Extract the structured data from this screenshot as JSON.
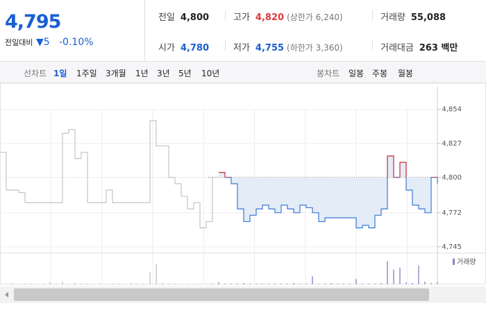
{
  "quote": {
    "price": "4,795",
    "change_label": "전일대비",
    "change": "5",
    "change_pct": "-0.10%",
    "stats": [
      [
        {
          "label": "전일",
          "value": "4,800"
        },
        {
          "label": "고가",
          "value": "4,820",
          "note": "(상한가 6,240)"
        },
        {
          "label": "거래량",
          "value": "55,088"
        }
      ],
      [
        {
          "label": "시가",
          "value": "4,780"
        },
        {
          "label": "저가",
          "value": "4,755",
          "note": "(하한가 3,360)"
        },
        {
          "label": "거래대금",
          "value": "263 백만"
        }
      ]
    ]
  },
  "toolbar": {
    "line_label": "선차트",
    "line_periods": [
      "1일",
      "1주일",
      "3개월",
      "1년",
      "3년",
      "5년",
      "10년"
    ],
    "candle_label": "봉차트",
    "candle_periods": [
      "일봉",
      "주봉",
      "월봉"
    ]
  },
  "chart_data": {
    "type": "line",
    "x": [
      0,
      1,
      2,
      3,
      4,
      5,
      6,
      7,
      8,
      9,
      10,
      11,
      12,
      13,
      14,
      15,
      16,
      17,
      18,
      19,
      20,
      21,
      22,
      23,
      24,
      25,
      26,
      27,
      28,
      29,
      30,
      31,
      32,
      33,
      34,
      35,
      36,
      37,
      38,
      39,
      40,
      41,
      42,
      43,
      44,
      45,
      46,
      47,
      48,
      49,
      50,
      51,
      52,
      53,
      54,
      55,
      56,
      57,
      58,
      59,
      60,
      61,
      62,
      63,
      64,
      65,
      66,
      67,
      68,
      69,
      70
    ],
    "xlim": [
      0,
      70
    ],
    "series": [
      {
        "color": "#c4c4c4",
        "values": [
          4820,
          4790,
          4790,
          4788,
          4780,
          4780,
          4780,
          4780,
          4780,
          4780,
          4835,
          4838,
          4815,
          4820,
          4780,
          4780,
          4780,
          4790,
          4780,
          4780,
          4780,
          4780,
          4780,
          4780,
          4845,
          4825,
          4825,
          4800,
          4795,
          4785,
          4775,
          4780,
          4760,
          4765,
          4800,
          null,
          null,
          null,
          null,
          null,
          null,
          null,
          null,
          null,
          null,
          null,
          null,
          null,
          null,
          null,
          null,
          null,
          null,
          null,
          null,
          null,
          null,
          null,
          null,
          null,
          null,
          null,
          null,
          null,
          null,
          null,
          null,
          null,
          null,
          null,
          null
        ]
      },
      {
        "color": "#3a78d4",
        "values": [
          null,
          null,
          null,
          null,
          null,
          null,
          null,
          null,
          null,
          null,
          null,
          null,
          null,
          null,
          null,
          null,
          null,
          null,
          null,
          null,
          null,
          null,
          null,
          null,
          null,
          null,
          null,
          null,
          null,
          null,
          null,
          null,
          null,
          null,
          null,
          4804,
          4800,
          4795,
          4775,
          4765,
          4770,
          4775,
          4778,
          4775,
          4772,
          4778,
          4775,
          4772,
          4778,
          4776,
          4772,
          4765,
          4768,
          4768,
          4768,
          4768,
          4768,
          4760,
          4762,
          4760,
          4770,
          4775,
          4817,
          4800,
          4812,
          4790,
          4778,
          4775,
          4772,
          4800,
          4795
        ]
      }
    ],
    "baseline": 4800,
    "up_color": "#e03a3a",
    "fill_color": "#e4ecf8",
    "ylim": [
      4740,
      4872
    ],
    "yticks": [
      {
        "value": 4854,
        "label": "4,854"
      },
      {
        "value": 4827,
        "label": "4,827"
      },
      {
        "value": 4800,
        "label": "4,800"
      },
      {
        "value": 4772,
        "label": "4,772"
      },
      {
        "value": 4745,
        "label": "4,745"
      }
    ],
    "grid": true,
    "volume": {
      "name": "거래량",
      "color": "#9a7fc6",
      "prev_color": "#c4c4c4",
      "ylim": [
        0,
        45
      ],
      "values": [
        1,
        1,
        2,
        1,
        1,
        1,
        1,
        1,
        3,
        1,
        4,
        1,
        2,
        1,
        1,
        1,
        1,
        1,
        1,
        1,
        1,
        2,
        1,
        1,
        18,
        30,
        2,
        1,
        1,
        1,
        1,
        1,
        1,
        1,
        2,
        3,
        1,
        1,
        1,
        2,
        1,
        1,
        1,
        1,
        1,
        1,
        1,
        2,
        1,
        1,
        12,
        1,
        1,
        2,
        1,
        1,
        1,
        8,
        1,
        1,
        1,
        2,
        35,
        22,
        25,
        3,
        2,
        28,
        4,
        2,
        3
      ]
    }
  }
}
